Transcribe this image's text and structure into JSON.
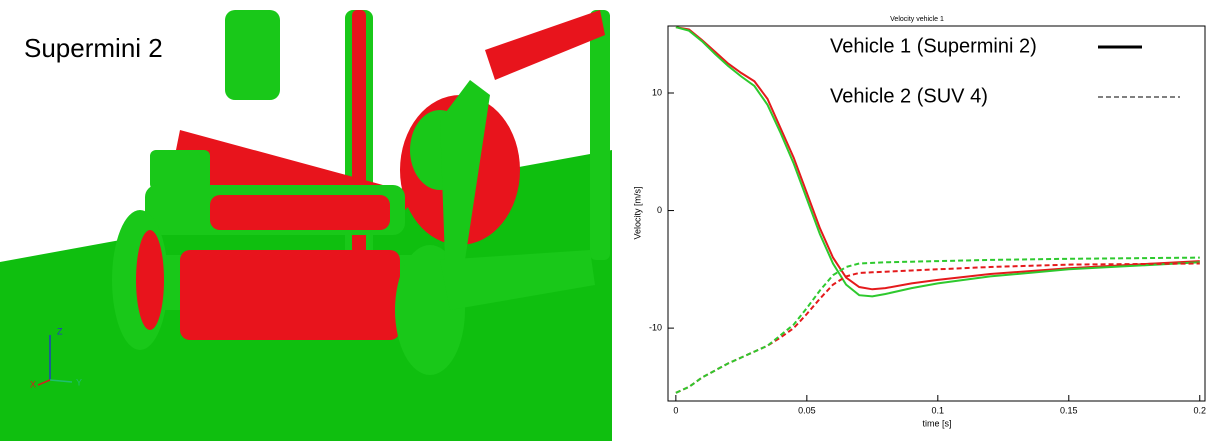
{
  "left_view": {
    "label": "Supermini 2",
    "axis_labels": [
      "Z",
      "Y",
      "X"
    ]
  },
  "chart_data": {
    "type": "line",
    "title": "Velocity vehicle 1",
    "x_label": "time [s]",
    "y_label": "Velocity [m/s]",
    "x": [
      0,
      0.005,
      0.01,
      0.015,
      0.02,
      0.025,
      0.03,
      0.035,
      0.04,
      0.045,
      0.05,
      0.055,
      0.06,
      0.065,
      0.07,
      0.075,
      0.08,
      0.09,
      0.1,
      0.12,
      0.15,
      0.2
    ],
    "series": [
      {
        "color": "#e41a1c",
        "dash": "solid",
        "values": [
          15.6,
          15.4,
          14.5,
          13.5,
          12.5,
          11.7,
          11.0,
          9.5,
          7.0,
          4.5,
          1.5,
          -1.5,
          -4.0,
          -5.7,
          -6.5,
          -6.7,
          -6.6,
          -6.2,
          -5.9,
          -5.4,
          -4.9,
          -4.3
        ]
      },
      {
        "color": "#2ec92e",
        "dash": "solid",
        "values": [
          15.6,
          15.3,
          14.4,
          13.3,
          12.3,
          11.4,
          10.6,
          9.0,
          6.6,
          4.0,
          1.0,
          -2.0,
          -4.5,
          -6.3,
          -7.2,
          -7.3,
          -7.1,
          -6.6,
          -6.2,
          -5.6,
          -5.0,
          -4.4
        ]
      },
      {
        "color": "#e41a1c",
        "dash": "dashed",
        "values": [
          -15.5,
          -15.0,
          -14.2,
          -13.6,
          -13.0,
          -12.5,
          -12.0,
          -11.5,
          -10.8,
          -10.0,
          -8.8,
          -7.5,
          -6.3,
          -5.6,
          -5.3,
          -5.25,
          -5.2,
          -5.1,
          -5.0,
          -4.8,
          -4.6,
          -4.5
        ]
      },
      {
        "color": "#2ec92e",
        "dash": "dashed",
        "values": [
          -15.5,
          -15.0,
          -14.2,
          -13.6,
          -13.0,
          -12.5,
          -12.0,
          -11.5,
          -10.6,
          -9.7,
          -8.3,
          -6.8,
          -5.5,
          -4.8,
          -4.5,
          -4.45,
          -4.4,
          -4.35,
          -4.3,
          -4.2,
          -4.1,
          -4.0
        ]
      }
    ],
    "legend": [
      {
        "label": "Vehicle 1 (Supermini 2)",
        "dash": "solid"
      },
      {
        "label": "Vehicle 2 (SUV 4)",
        "dash": "dashed"
      }
    ],
    "xlim": [
      -0.003,
      0.202
    ],
    "ylim": [
      -16.2,
      15.7
    ],
    "xticks": [
      0,
      0.05,
      0.1,
      0.15,
      0.2
    ],
    "yticks": [
      -10,
      0,
      10
    ]
  }
}
